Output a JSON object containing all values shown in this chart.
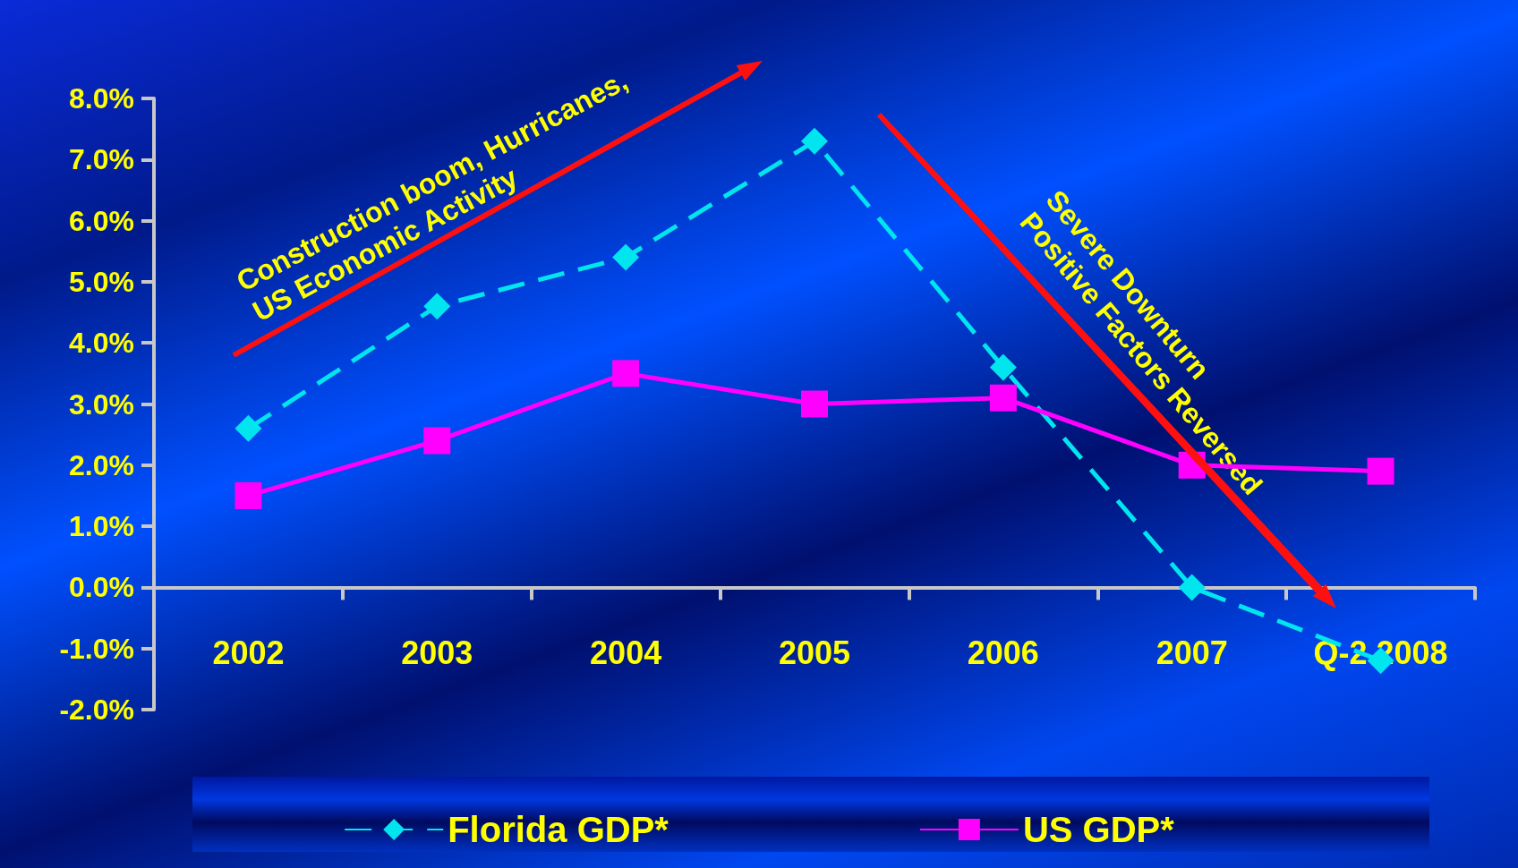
{
  "chart_data": {
    "type": "line",
    "categories": [
      "2002",
      "2003",
      "2004",
      "2005",
      "2006",
      "2007",
      "Q-2 2008"
    ],
    "series": [
      {
        "name": "Florida GDP*",
        "color": "#00e5ee",
        "marker": "diamond",
        "line_style": "dashed",
        "values": [
          2.6,
          4.6,
          5.4,
          7.3,
          3.6,
          0.0,
          -1.2
        ]
      },
      {
        "name": "US GDP*",
        "color": "#ff00ff",
        "marker": "square",
        "line_style": "solid",
        "values": [
          1.5,
          2.4,
          3.5,
          3.0,
          3.1,
          2.0,
          1.9
        ]
      }
    ],
    "ylim": [
      -2,
      8
    ],
    "yticks": [
      {
        "value": -2,
        "label": "-2.0%"
      },
      {
        "value": -1,
        "label": "-1.0%"
      },
      {
        "value": 0,
        "label": "0.0%"
      },
      {
        "value": 1,
        "label": "1.0%"
      },
      {
        "value": 2,
        "label": "2.0%"
      },
      {
        "value": 3,
        "label": "3.0%"
      },
      {
        "value": 4,
        "label": "4.0%"
      },
      {
        "value": 5,
        "label": "5.0%"
      },
      {
        "value": 6,
        "label": "6.0%"
      },
      {
        "value": 7,
        "label": "7.0%"
      },
      {
        "value": 8,
        "label": "8.0%"
      }
    ],
    "annotations": [
      "Construction boom, Hurricanes,\nUS Economic Activity",
      "Severe Downturn\nPositive Factors Reversed"
    ],
    "grid": false,
    "legend": "bottom"
  }
}
